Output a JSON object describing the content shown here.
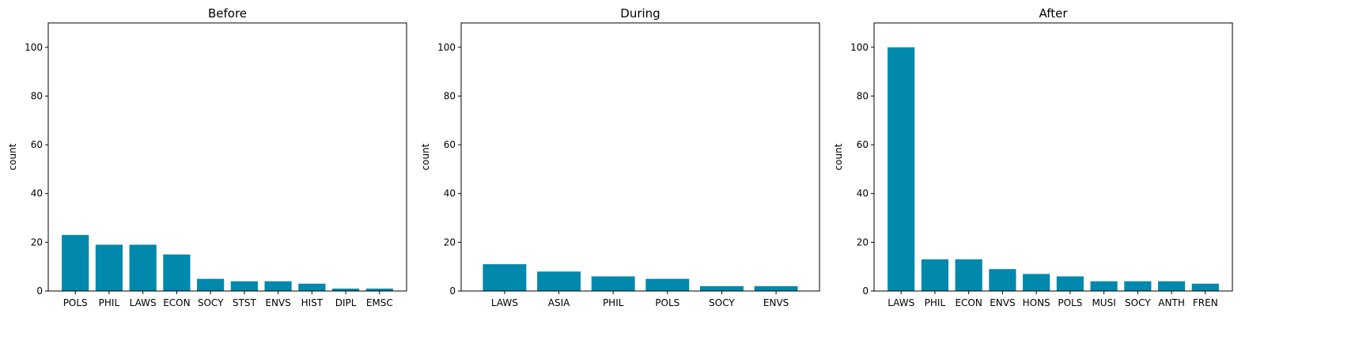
{
  "colors": {
    "bar": "#0088ad",
    "axis": "#000000",
    "background": "#ffffff"
  },
  "chart_data": [
    {
      "type": "bar",
      "title": "Before",
      "xlabel": "",
      "ylabel": "count",
      "ylim": [
        0,
        110
      ],
      "yticks": [
        0,
        20,
        40,
        60,
        80,
        100
      ],
      "grid": false,
      "categories": [
        "POLS",
        "PHIL",
        "LAWS",
        "ECON",
        "SOCY",
        "STST",
        "ENVS",
        "HIST",
        "DIPL",
        "EMSC"
      ],
      "values": [
        23,
        19,
        19,
        15,
        5,
        4,
        4,
        3,
        1,
        1
      ]
    },
    {
      "type": "bar",
      "title": "During",
      "xlabel": "",
      "ylabel": "count",
      "ylim": [
        0,
        110
      ],
      "yticks": [
        0,
        20,
        40,
        60,
        80,
        100
      ],
      "grid": false,
      "categories": [
        "LAWS",
        "ASIA",
        "PHIL",
        "POLS",
        "SOCY",
        "ENVS"
      ],
      "values": [
        11,
        8,
        6,
        5,
        2,
        2
      ]
    },
    {
      "type": "bar",
      "title": "After",
      "xlabel": "",
      "ylabel": "count",
      "ylim": [
        0,
        110
      ],
      "yticks": [
        0,
        20,
        40,
        60,
        80,
        100
      ],
      "grid": false,
      "categories": [
        "LAWS",
        "PHIL",
        "ECON",
        "ENVS",
        "HONS",
        "POLS",
        "MUSI",
        "SOCY",
        "ANTH",
        "FREN"
      ],
      "values": [
        100,
        13,
        13,
        9,
        7,
        6,
        4,
        4,
        4,
        3
      ]
    }
  ]
}
